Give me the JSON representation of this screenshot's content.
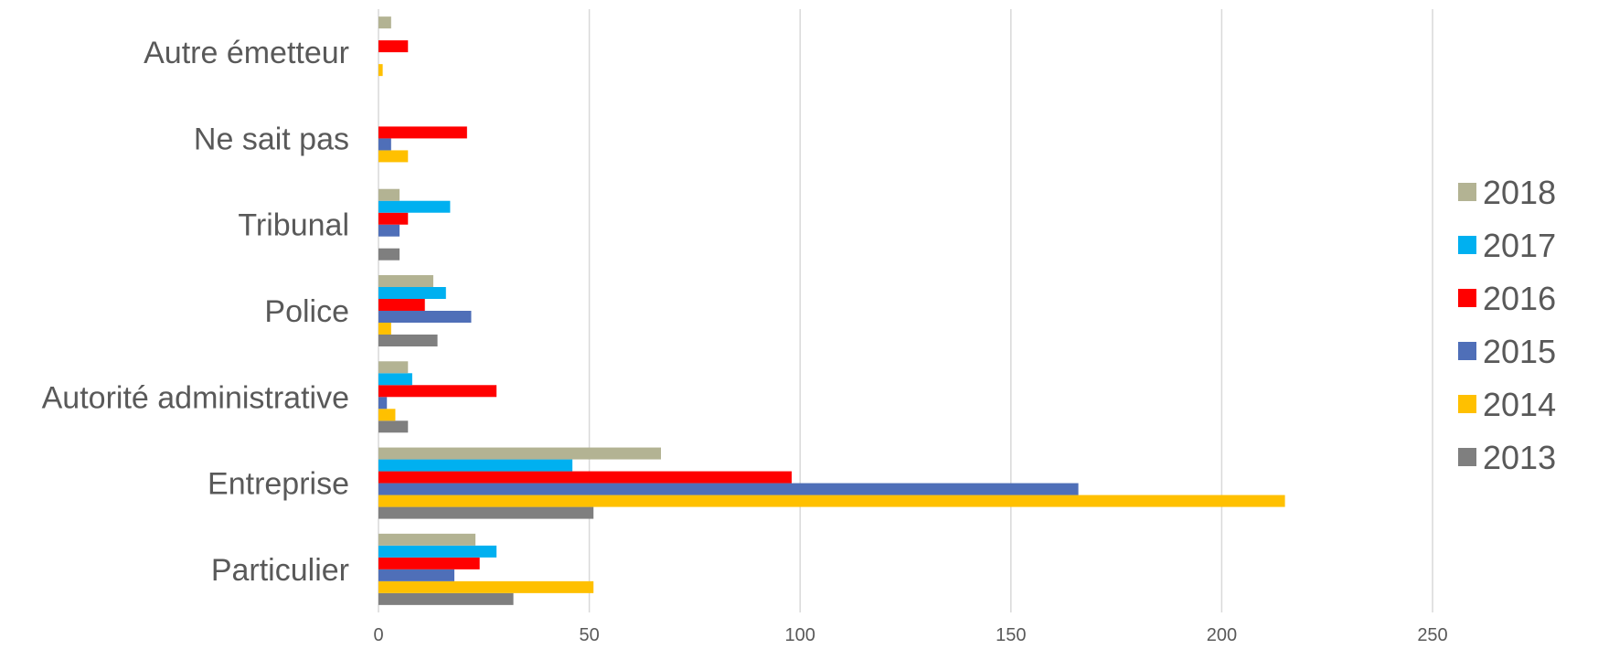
{
  "chart_data": {
    "type": "bar",
    "orientation": "horizontal",
    "categories": [
      "Particulier",
      "Entreprise",
      "Autorité administrative",
      "Police",
      "Tribunal",
      "Ne sait pas",
      "Autre émetteur"
    ],
    "series": [
      {
        "name": "2013",
        "color": "#7f7f7f",
        "values": [
          32,
          51,
          7,
          14,
          5,
          0,
          0
        ]
      },
      {
        "name": "2014",
        "color": "#ffc000",
        "values": [
          51,
          215,
          4,
          3,
          0,
          7,
          1
        ]
      },
      {
        "name": "2015",
        "color": "#4f6fb8",
        "values": [
          18,
          166,
          2,
          22,
          5,
          3,
          0
        ]
      },
      {
        "name": "2016",
        "color": "#ff0000",
        "values": [
          24,
          98,
          28,
          11,
          7,
          21,
          7
        ]
      },
      {
        "name": "2017",
        "color": "#00b0f0",
        "values": [
          28,
          46,
          8,
          16,
          17,
          0,
          0
        ]
      },
      {
        "name": "2018",
        "color": "#b3b393",
        "values": [
          23,
          67,
          7,
          13,
          5,
          0,
          3
        ]
      }
    ],
    "x_ticks": [
      "0",
      "50",
      "100",
      "150",
      "200",
      "250"
    ],
    "xlim": [
      0,
      250
    ],
    "grid": "vertical",
    "legend_position": "right",
    "title": "",
    "xlabel": "",
    "ylabel": ""
  }
}
